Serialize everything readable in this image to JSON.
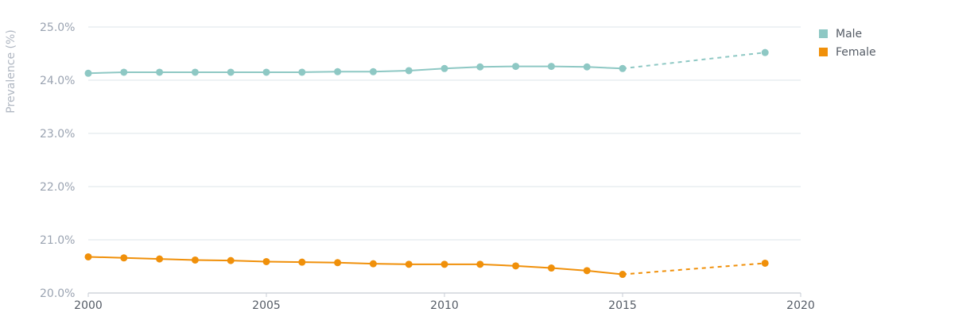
{
  "chart_data": {
    "type": "line",
    "title": "",
    "xlabel": "",
    "ylabel": "Prevalence (%)",
    "xlim": [
      2000,
      2020
    ],
    "ylim": [
      20.0,
      25.0
    ],
    "x_ticks": [
      "2000",
      "2005",
      "2010",
      "2015",
      "2020"
    ],
    "y_ticks": [
      "20.0%",
      "21.0%",
      "22.0%",
      "23.0%",
      "24.0%",
      "25.0%"
    ],
    "grid": true,
    "legend_position": "top-right",
    "series": [
      {
        "name": "Male",
        "color": "#8ec8c4",
        "x": [
          2000,
          2001,
          2002,
          2003,
          2004,
          2005,
          2006,
          2007,
          2008,
          2009,
          2010,
          2011,
          2012,
          2013,
          2014,
          2015
        ],
        "values": [
          24.13,
          24.15,
          24.15,
          24.15,
          24.15,
          24.15,
          24.15,
          24.16,
          24.16,
          24.18,
          24.22,
          24.25,
          24.26,
          24.26,
          24.25,
          24.22
        ],
        "projection": {
          "x": [
            2015,
            2019
          ],
          "values": [
            24.22,
            24.52
          ]
        }
      },
      {
        "name": "Female",
        "color": "#f0900a",
        "x": [
          2000,
          2001,
          2002,
          2003,
          2004,
          2005,
          2006,
          2007,
          2008,
          2009,
          2010,
          2011,
          2012,
          2013,
          2014,
          2015
        ],
        "values": [
          20.68,
          20.66,
          20.64,
          20.62,
          20.61,
          20.59,
          20.58,
          20.57,
          20.55,
          20.54,
          20.54,
          20.54,
          20.51,
          20.47,
          20.42,
          20.35
        ],
        "projection": {
          "x": [
            2015,
            2019
          ],
          "values": [
            20.35,
            20.56
          ]
        }
      }
    ]
  }
}
